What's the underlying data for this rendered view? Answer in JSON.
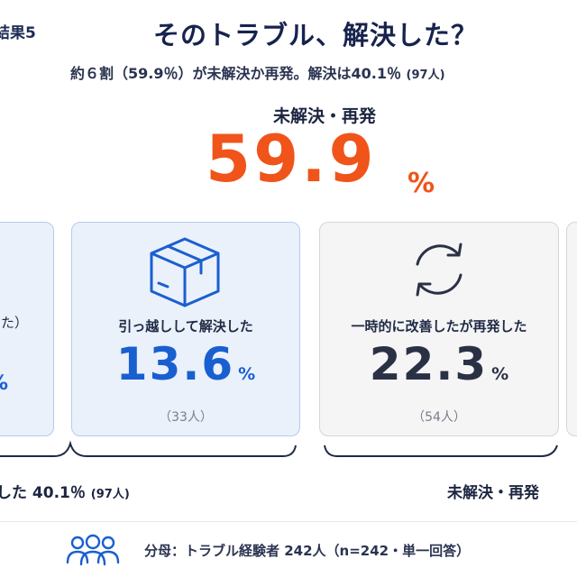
{
  "header": {
    "tag": "結果5",
    "title": "そのトラブル、解決した？",
    "subtitle_main": "約６割（59.9％）が未解決か再発。解決は40.1％",
    "subtitle_count": "(97人)"
  },
  "hero": {
    "label": "未解決・再発",
    "value": "59.9",
    "unit": "%"
  },
  "cards": [
    {
      "label_fragment": "た）",
      "value_fragment": "%"
    },
    {
      "label": "引っ越しして解決した",
      "value": "13.6",
      "unit": "%",
      "count": "（33人）",
      "icon": "box-icon"
    },
    {
      "label": "一時的に改善したが再発した",
      "value": "22.3",
      "unit": "%",
      "count": "（54人）",
      "icon": "cycle-icon"
    }
  ],
  "summary": {
    "resolved_text": "した 40.1％",
    "resolved_count": "(97人)",
    "unresolved_text": "未解決・再発"
  },
  "footer": {
    "note": "分母：トラブル経験者 242人（n=242・単一回答）",
    "icon": "people-icon"
  },
  "colors": {
    "accent": "#f0541a",
    "blue": "#1a5fd0",
    "navy": "#17234d"
  }
}
